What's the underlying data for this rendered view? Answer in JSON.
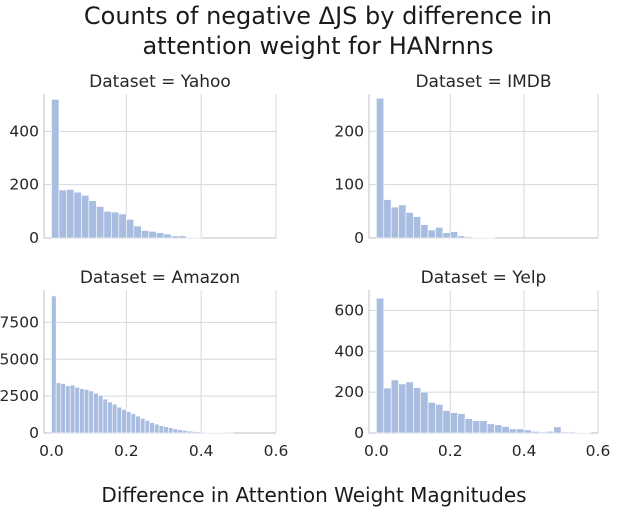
{
  "figure": {
    "title_line1": "Counts of negative ΔJS by difference in",
    "title_line2": "attention weight for HANrnns",
    "xlabel": "Difference in Attention Weight Magnitudes"
  },
  "chart_data": [
    {
      "type": "bar",
      "title": "Dataset = Yahoo",
      "xlabel": "",
      "ylabel": "",
      "xlim": [
        -0.02,
        0.6
      ],
      "ylim": [
        0,
        540
      ],
      "xticks": [
        0.0,
        0.2,
        0.4,
        0.6
      ],
      "xtick_labels": [
        "",
        "",
        "",
        ""
      ],
      "yticks": [
        0,
        200,
        400
      ],
      "ytick_labels": [
        "0",
        "200",
        "400"
      ],
      "bin_width": 0.02,
      "x": [
        0.0,
        0.02,
        0.04,
        0.06,
        0.08,
        0.1,
        0.12,
        0.14,
        0.16,
        0.18,
        0.2,
        0.22,
        0.24,
        0.26,
        0.28,
        0.3,
        0.32,
        0.34,
        0.36,
        0.38,
        0.4,
        0.42,
        0.44,
        0.46,
        0.48,
        0.5,
        0.52,
        0.54,
        0.56
      ],
      "values": [
        520,
        180,
        182,
        172,
        160,
        140,
        118,
        100,
        97,
        90,
        70,
        45,
        28,
        25,
        20,
        15,
        8,
        8,
        3,
        2,
        0,
        0,
        0,
        0,
        0,
        0,
        0,
        0,
        0
      ]
    },
    {
      "type": "bar",
      "title": "Dataset = IMDB",
      "xlabel": "",
      "ylabel": "",
      "xlim": [
        -0.02,
        0.6
      ],
      "ylim": [
        0,
        270
      ],
      "xticks": [
        0.0,
        0.2,
        0.4,
        0.6
      ],
      "xtick_labels": [
        "",
        "",
        "",
        ""
      ],
      "yticks": [
        0,
        100,
        200
      ],
      "ytick_labels": [
        "0",
        "100",
        "200"
      ],
      "bin_width": 0.02,
      "x": [
        0.0,
        0.02,
        0.04,
        0.06,
        0.08,
        0.1,
        0.12,
        0.14,
        0.16,
        0.18,
        0.2,
        0.22,
        0.24,
        0.26,
        0.28,
        0.3
      ],
      "values": [
        262,
        72,
        58,
        62,
        48,
        40,
        25,
        15,
        20,
        10,
        12,
        4,
        2,
        1,
        1,
        1
      ]
    },
    {
      "type": "bar",
      "title": "Dataset = Amazon",
      "xlabel": "",
      "ylabel": "",
      "xlim": [
        -0.02,
        0.6
      ],
      "ylim": [
        0,
        9700
      ],
      "xticks": [
        0.0,
        0.2,
        0.4,
        0.6
      ],
      "xtick_labels": [
        "0.0",
        "0.2",
        "0.4",
        "0.6"
      ],
      "yticks": [
        0,
        2500,
        5000,
        7500
      ],
      "ytick_labels": [
        "0",
        "2500",
        "5000",
        "7500"
      ],
      "bin_width": 0.0125,
      "x": [
        0.0,
        0.0125,
        0.025,
        0.0375,
        0.05,
        0.0625,
        0.075,
        0.0875,
        0.1,
        0.1125,
        0.125,
        0.1375,
        0.15,
        0.1625,
        0.175,
        0.1875,
        0.2,
        0.2125,
        0.225,
        0.2375,
        0.25,
        0.2625,
        0.275,
        0.2875,
        0.3,
        0.3125,
        0.325,
        0.3375,
        0.35,
        0.3625,
        0.375,
        0.3875,
        0.4,
        0.4125,
        0.425,
        0.4375,
        0.45,
        0.4625,
        0.475
      ],
      "values": [
        9300,
        3400,
        3350,
        3200,
        3250,
        3100,
        3000,
        2950,
        2850,
        2700,
        2550,
        2300,
        2100,
        1950,
        1750,
        1600,
        1450,
        1300,
        1150,
        1000,
        850,
        700,
        600,
        500,
        420,
        350,
        280,
        220,
        170,
        130,
        100,
        80,
        60,
        40,
        30,
        20,
        15,
        10,
        5
      ]
    },
    {
      "type": "bar",
      "title": "Dataset = Yelp",
      "xlabel": "",
      "ylabel": "",
      "xlim": [
        -0.02,
        0.6
      ],
      "ylim": [
        0,
        700
      ],
      "xticks": [
        0.0,
        0.2,
        0.4,
        0.6
      ],
      "xtick_labels": [
        "0.0",
        "0.2",
        "0.4",
        "0.6"
      ],
      "yticks": [
        0,
        200,
        400,
        600
      ],
      "ytick_labels": [
        "0",
        "200",
        "400",
        "600"
      ],
      "bin_width": 0.02,
      "x": [
        0.0,
        0.02,
        0.04,
        0.06,
        0.08,
        0.1,
        0.12,
        0.14,
        0.16,
        0.18,
        0.2,
        0.22,
        0.24,
        0.26,
        0.28,
        0.3,
        0.32,
        0.34,
        0.36,
        0.38,
        0.4,
        0.42,
        0.44,
        0.46,
        0.48,
        0.5,
        0.52,
        0.54,
        0.56
      ],
      "values": [
        660,
        220,
        260,
        240,
        250,
        222,
        200,
        150,
        140,
        110,
        100,
        95,
        70,
        60,
        60,
        45,
        40,
        32,
        20,
        20,
        15,
        8,
        5,
        8,
        30,
        5,
        5,
        3,
        2
      ]
    }
  ]
}
